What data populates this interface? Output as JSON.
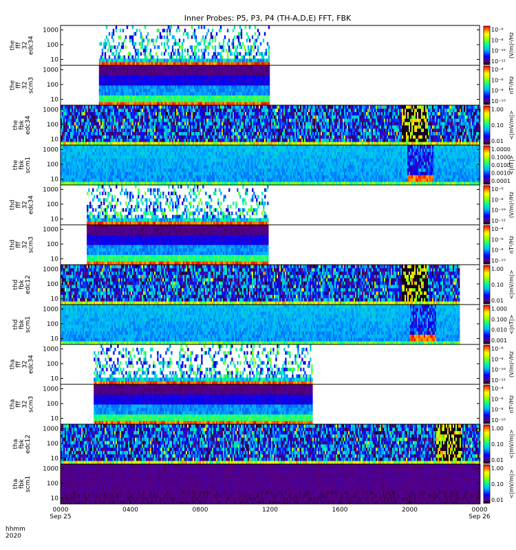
{
  "chart_data": {
    "type": "heatmap",
    "title": "Inner Probes: P5, P3, P4 (TH-A,D,E) FFT, FBK",
    "x_axis": {
      "range_hours": [
        0,
        24
      ],
      "ticks": [
        {
          "hour": 0,
          "label": "0000",
          "sub": "Sep 25"
        },
        {
          "hour": 4,
          "label": "0400",
          "sub": ""
        },
        {
          "hour": 8,
          "label": "0800",
          "sub": ""
        },
        {
          "hour": 12,
          "label": "1200",
          "sub": ""
        },
        {
          "hour": 16,
          "label": "1600",
          "sub": ""
        },
        {
          "hour": 20,
          "label": "2000",
          "sub": ""
        },
        {
          "hour": 24,
          "label": "0000",
          "sub": "Sep 26"
        }
      ],
      "corner_label": [
        "hhmm",
        "2020"
      ]
    },
    "y_axis": {
      "scale": "log",
      "ticks": [
        "10",
        "100",
        "1000"
      ]
    },
    "panels": [
      {
        "label": [
          "the",
          "fff",
          "32",
          "edc34"
        ],
        "start": 2.2,
        "end": 11.9,
        "profile": "eff",
        "colorbar": {
          "unit": "(V/m)²/Hz",
          "ticks": [
            "10⁻⁶",
            "10⁻⁸",
            "10⁻¹⁰",
            "10⁻¹²"
          ]
        }
      },
      {
        "label": [
          "the",
          "fff",
          "32",
          "scm3"
        ],
        "start": 2.2,
        "end": 11.9,
        "profile": "scm",
        "colorbar": {
          "unit": "nT²/Hz",
          "ticks": [
            "10⁻⁴",
            "10⁻⁶",
            "10⁻⁸",
            "10⁻¹⁰"
          ]
        }
      },
      {
        "label": [
          "the",
          "fbk",
          "edc34"
        ],
        "start": 0,
        "end": 24,
        "profile": "fbe",
        "event": 19.5,
        "colorbar": {
          "unit": "<|mV/m|>",
          "ticks": [
            "1.00",
            "0.10",
            "0.01"
          ]
        }
      },
      {
        "label": [
          "the",
          "fbk",
          "scm1"
        ],
        "start": 0,
        "end": 24,
        "profile": "fbs",
        "event": 19.8,
        "colorbar": {
          "unit": "<|nT|>",
          "ticks": [
            "1.0000",
            "0.1000",
            "0.0100",
            "0.0010",
            "0.0001"
          ]
        }
      },
      {
        "label": [
          "thd",
          "fff",
          "32",
          "edc34"
        ],
        "start": 1.5,
        "end": 11.9,
        "profile": "eff",
        "colorbar": {
          "unit": "(V/m)²/Hz",
          "ticks": [
            "10⁻⁶",
            "10⁻⁸",
            "10⁻¹⁰",
            "10⁻¹²"
          ]
        }
      },
      {
        "label": [
          "thd",
          "fff",
          "32",
          "scm3"
        ],
        "start": 1.5,
        "end": 11.9,
        "profile": "scm",
        "colorbar": {
          "unit": "nT²/Hz",
          "ticks": [
            "10⁻⁴",
            "10⁻⁶",
            "10⁻⁸",
            "10⁻¹⁰"
          ]
        }
      },
      {
        "label": [
          "thd",
          "fbk",
          "edc12"
        ],
        "start": 0,
        "end": 22.8,
        "profile": "fbe",
        "event": 19.5,
        "colorbar": {
          "unit": "<|mV/m|>",
          "ticks": [
            "1.00",
            "0.10",
            "0.01"
          ]
        }
      },
      {
        "label": [
          "thd",
          "fbk",
          "scm1"
        ],
        "start": 0,
        "end": 22.8,
        "profile": "fbs",
        "event": 20.0,
        "colorbar": {
          "unit": "<|nT|>",
          "ticks": [
            "1.000",
            "0.100",
            "0.010",
            "0.001"
          ]
        }
      },
      {
        "label": [
          "tha",
          "fff",
          "32",
          "edc34"
        ],
        "start": 1.9,
        "end": 14.4,
        "profile": "eff",
        "colorbar": {
          "unit": "(V/m)²/Hz",
          "ticks": [
            "10⁻⁶",
            "10⁻⁸",
            "10⁻¹⁰",
            "10⁻¹²"
          ]
        }
      },
      {
        "label": [
          "tha",
          "fff",
          "32",
          "scm3"
        ],
        "start": 1.9,
        "end": 14.4,
        "profile": "scm",
        "colorbar": {
          "unit": "nT²/Hz",
          "ticks": [
            "10⁻⁴",
            "10⁻⁶",
            "10⁻⁸",
            "10⁻¹⁰"
          ]
        }
      },
      {
        "label": [
          "tha",
          "fbk",
          "edc12"
        ],
        "start": 0,
        "end": 24,
        "profile": "fbe",
        "event": 21.5,
        "colorbar": {
          "unit": "<|mV/m|>",
          "ticks": [
            "1.00",
            "0.10",
            "0.01"
          ]
        }
      },
      {
        "label": [
          "tha",
          "fbk",
          "scm1"
        ],
        "start": 0,
        "end": 24,
        "profile": "fbq",
        "colorbar": {
          "unit": "<|mV/m|>",
          "ticks": [
            "1.00",
            "0.10",
            "0.01"
          ]
        }
      }
    ]
  }
}
